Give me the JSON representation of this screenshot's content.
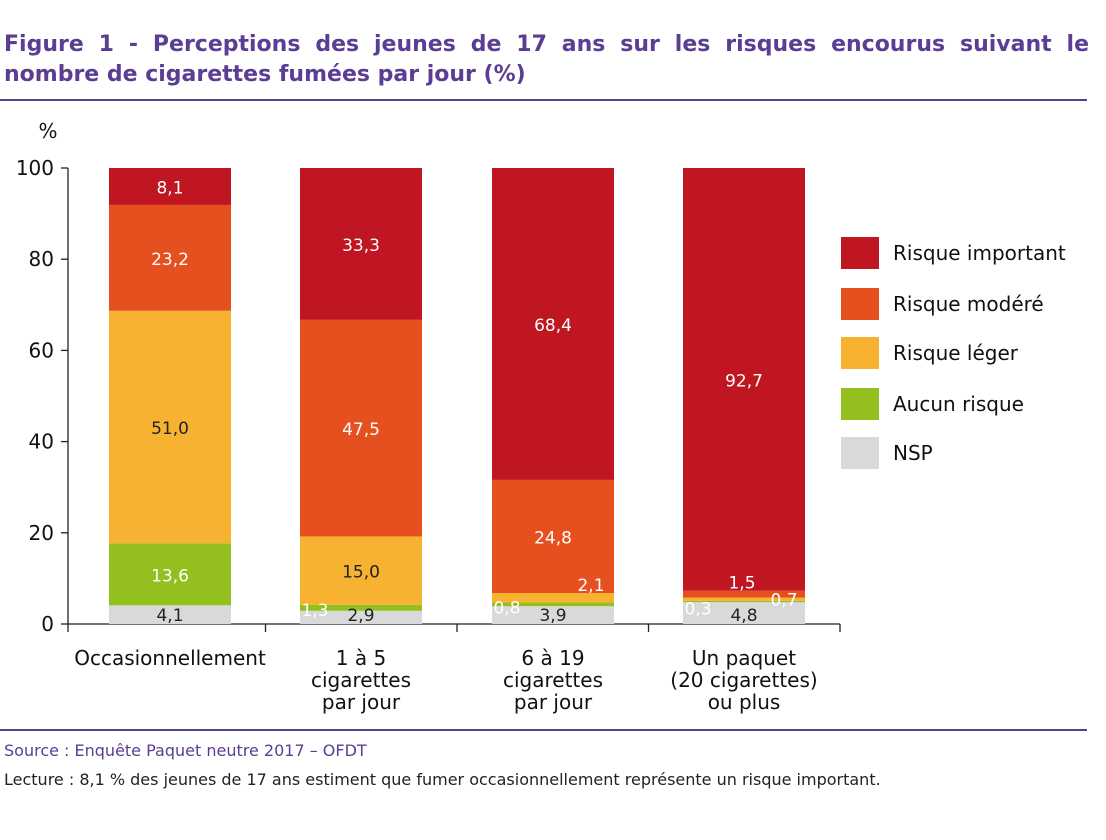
{
  "title": "Figure 1 - Perceptions des jeunes de 17 ans sur les risques encourus suivant le nombre de cigarettes fumées par jour (%)",
  "source": "Source : Enquête Paquet neutre 2017 – OFDT",
  "note": "Lecture : 8,1 % des jeunes de 17 ans estiment que fumer occasionnellement représente un risque important.",
  "chart_data": {
    "type": "bar",
    "stacked": true,
    "ylabel": "%",
    "ylim": [
      0,
      100
    ],
    "yticks": [
      "0",
      "20",
      "40",
      "60",
      "80",
      "100"
    ],
    "categories": [
      [
        "Occasionnellement"
      ],
      [
        "1 à 5",
        "cigarettes",
        "par jour"
      ],
      [
        "6 à 19",
        "cigarettes",
        "par jour"
      ],
      [
        "Un paquet",
        "(20 cigarettes)",
        "ou plus"
      ]
    ],
    "series": [
      {
        "name": "NSP",
        "color": "#d9d9d9",
        "values": [
          4.1,
          2.9,
          3.9,
          4.8
        ],
        "labels": [
          "4,1",
          "2,9",
          "3,9",
          "4,8"
        ]
      },
      {
        "name": "Aucun risque",
        "color": "#93c01f",
        "values": [
          13.6,
          1.3,
          0.8,
          0.3
        ],
        "labels": [
          "13,6",
          "1,3",
          "0,8",
          "0,3"
        ]
      },
      {
        "name": "Risque léger",
        "color": "#f7b232",
        "values": [
          51.0,
          15.0,
          2.1,
          0.7
        ],
        "labels": [
          "51,0",
          "15,0",
          "2,1",
          "0,7"
        ]
      },
      {
        "name": "Risque modéré",
        "color": "#e64f1e",
        "values": [
          23.2,
          47.5,
          24.8,
          1.5
        ],
        "labels": [
          "23,2",
          "47,5",
          "24,8",
          "1,5"
        ]
      },
      {
        "name": "Risque important",
        "color": "#bf1622",
        "values": [
          8.1,
          33.3,
          68.4,
          92.7
        ],
        "labels": [
          "8,1",
          "33,3",
          "68,4",
          "92,7"
        ]
      }
    ],
    "legend": [
      "Risque important",
      "Risque modéré",
      "Risque léger",
      "Aucun risque",
      "NSP"
    ],
    "legend_position": "right",
    "grid": false
  }
}
